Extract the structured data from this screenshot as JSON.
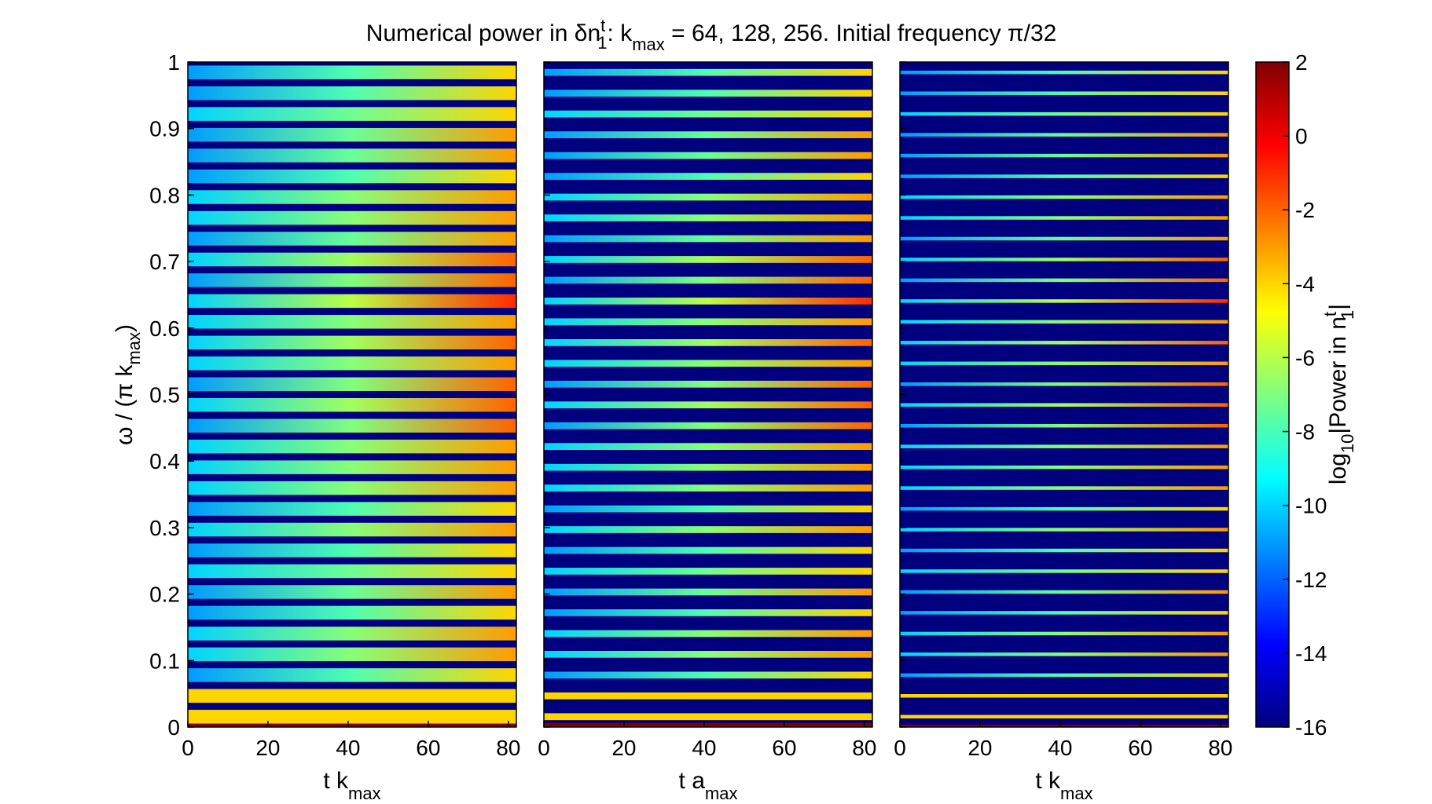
{
  "colors": {
    "background": "#00007f",
    "base_line": "#7f0000",
    "axis": "#000000"
  },
  "chart_data": {
    "type": "heatmap",
    "title": {
      "prefix": "Numerical power in δn",
      "sup": "t",
      "sub": "1",
      "colon": ": k",
      "sub2": "max",
      "suffix": " = 64, 128, 256. Initial frequency π/32"
    },
    "ylabel": {
      "main": "ω / (π k",
      "sub": "max",
      "close": ")"
    },
    "ylim": [
      0,
      1
    ],
    "y_ticks": [
      "0",
      "0.1",
      "0.2",
      "0.3",
      "0.4",
      "0.5",
      "0.6",
      "0.7",
      "0.8",
      "0.9",
      "1"
    ],
    "xlim": [
      0,
      82
    ],
    "x_ticks": [
      "0",
      "20",
      "40",
      "60",
      "80"
    ],
    "colorbar": {
      "label_main": "log",
      "label_sub": "10",
      "label_mid": "|Power in n",
      "label_sup": "t",
      "label_sub2": "1",
      "label_end": "|",
      "range": [
        -16,
        2
      ],
      "ticks": [
        "2",
        "0",
        "-2",
        "-4",
        "-6",
        "-8",
        "-10",
        "-12",
        "-14",
        "-16"
      ]
    },
    "panels": [
      {
        "kmax": 64,
        "xlabel_main": "t k",
        "xlabel_sub": "max",
        "n_lines": 32,
        "line_frac": 0.66
      },
      {
        "kmax": 128,
        "xlabel_main": "t a",
        "xlabel_sub": "max",
        "n_lines": 32,
        "line_frac": 0.33
      },
      {
        "kmax": 256,
        "xlabel_main": "t k",
        "xlabel_sub": "max",
        "n_lines": 32,
        "line_frac": 0.17
      }
    ],
    "frequency_lines": {
      "y_values": [
        0.0156,
        0.0469,
        0.0781,
        0.1094,
        0.1406,
        0.1719,
        0.2031,
        0.2344,
        0.2656,
        0.2969,
        0.3281,
        0.3594,
        0.3906,
        0.4219,
        0.4531,
        0.4844,
        0.5156,
        0.5469,
        0.5781,
        0.6094,
        0.6406,
        0.6719,
        0.7031,
        0.7344,
        0.7656,
        0.7969,
        0.8281,
        0.8594,
        0.8906,
        0.9219,
        0.9531,
        0.9844
      ],
      "start_log10_power": [
        -4,
        -4,
        -11,
        -10,
        -10,
        -11,
        -11,
        -10,
        -11,
        -10,
        -11,
        -10,
        -10,
        -10,
        -11,
        -10,
        -11,
        -10,
        -10,
        -10,
        -10,
        -11,
        -10,
        -11,
        -10,
        -10,
        -11,
        -11,
        -11,
        -10,
        -11,
        -11
      ],
      "end_log10_power": [
        -4,
        -4,
        -4,
        -3,
        -3,
        -4,
        -3,
        -4,
        -4,
        -3,
        -4,
        -3,
        -3,
        -3,
        -2,
        -2,
        -2,
        -3,
        -2,
        -3,
        -1,
        -2,
        -2,
        -3,
        -3,
        -3,
        -4,
        -3,
        -3,
        -4,
        -4,
        -4
      ],
      "base_log10_power": 2
    }
  }
}
